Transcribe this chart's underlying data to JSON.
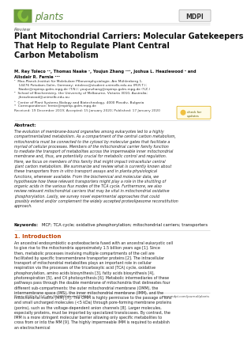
{
  "bg_color": "#ffffff",
  "journal_name": "plants",
  "journal_color": "#5a8a3c",
  "leaf_bg_color": "#6a9a3c",
  "leaf_color": "#8dc63f",
  "mdpi_text": "MDPI",
  "section_label": "Review",
  "title": "Plant Mitochondrial Carriers: Molecular Gatekeepers\nThat Help to Regulate Plant Central\nCarbon Metabolism",
  "title_color": "#111111",
  "authors": "M. Rey Toleco ¹², Thomas Naake ¹, Youjun Zhang ¹²³, Joshua L. Heazlewood ² and\nAlisdair R. Fernie ¹²¹",
  "affiliations": [
    "¹  Max-Planck-Institut für Molekulare Pflanzenphysiologie, Am Mühlenberg 1,\n    14476 Potsdam-Golm, Germany; mtoleco@student.unimelb.edu.au (M.R.T.);\n    Naake@mpimp-golm.mpg.de (T.N.); youjunzhang@mpimp-golm.mpg.de (Y.Z.)",
    "²  School of Biochemistry, the University of Melbourne, Victoria 3010, Australia;\n    jheazlewood@unimelb.edu.au",
    "³  Center of Plant Systems Biology and Biotechnology, 4000 Plovdiv, Bulgaria",
    "*  Correspondence: fernie@mpimp-golm.mpg.de"
  ],
  "received_line": "Received: 19 December 2019; Accepted: 15 January 2020; Published: 17 January 2020",
  "abstract_title": "Abstract:",
  "abstract_text": "The evolution of membrane-bound organelles among eukaryotes led to a highly compartmentalized metabolism. As a compartment of the central carbon metabolism, mitochondria must be connected to the cytosol by molecular gates that facilitate a myriad of cellular processes. Members of the mitochondrial carrier family function to mediate the transport of metabolites across the impermeable inner mitochondrial membrane and, thus, are potentially crucial for metabolic control and regulation. Here, we focus on members of this family that might impact intracellular central plant carbon metabolism. We summarize and review what is currently known about these transporters from in vitro transport assays and in planta physiological functions, whenever available. From the biochemical and molecular data, we hypothesize how these relevant transporters might play a role in the shuttling of organic acids in the various flux modes of the TCA cycle. Furthermore, we also review relevant mitochondrial carriers that may be vital in mitochondrial oxidative phosphorylation. Lastly, we survey novel experimental approaches that could possibly extend and/or complement the widely accepted proteolipesome reconstitution approach.",
  "keywords_title": "Keywords:",
  "keywords_text": "MCF; TCA cycle; oxidative phosphorylation; mitochondrial carriers; transporters",
  "section1_title": "1. Introduction",
  "section1_title_color": "#c04000",
  "intro_text": "An ancestral endosymbiotic α-proteobacteria fused with an ancestral eukaryotic cell to give rise to the mitochondria approximately 1.5 billion years ago [1]. Since then, metabolic processes involving multiple compartments of the cell are facilitated by specific transmembrane transporter proteins [2]. The intracellular transport of mitochondrial metabolites plays an important role in cellular respiration via the processes of the tricarboxylic acid (TCA) cycle, oxidative phosphorylation, amino acids biosynthesis [3], fatty acids biosynthesis [4], photorespiration [5], and C4 photosynthesis [6]. Metabolic intermediaries of these pathways pass through the double membrane of mitochondria that delineates four different sub-compartments: the outer mitochondrial membrane (OMM), the intermembrane space (IMS), the inner mitochondrial membrane (IMM), and the mitochondrial matrix (MM) [7]. The OMM is highly permissive to the passage of ions and small uncharged molecules (<5 kDa) through pore-forming membrane proteins (porins), such as the voltage-dependent anion channels [8]. Larger molecules, especially proteins, must be imported by specialized translocases. By contrast, the IMM is a more stringent molecular barrier allowing only specific metabolites to cross from or into the MM [9]. The highly impermeable IMM is required to establish an electrochemical",
  "footer_left": "Plants 2020, 9, 117; doi:10.3390/plants9010117",
  "footer_right": "www.mdpi.com/journal/plants",
  "rule_color": "#cccccc",
  "rule_lw": 0.4
}
